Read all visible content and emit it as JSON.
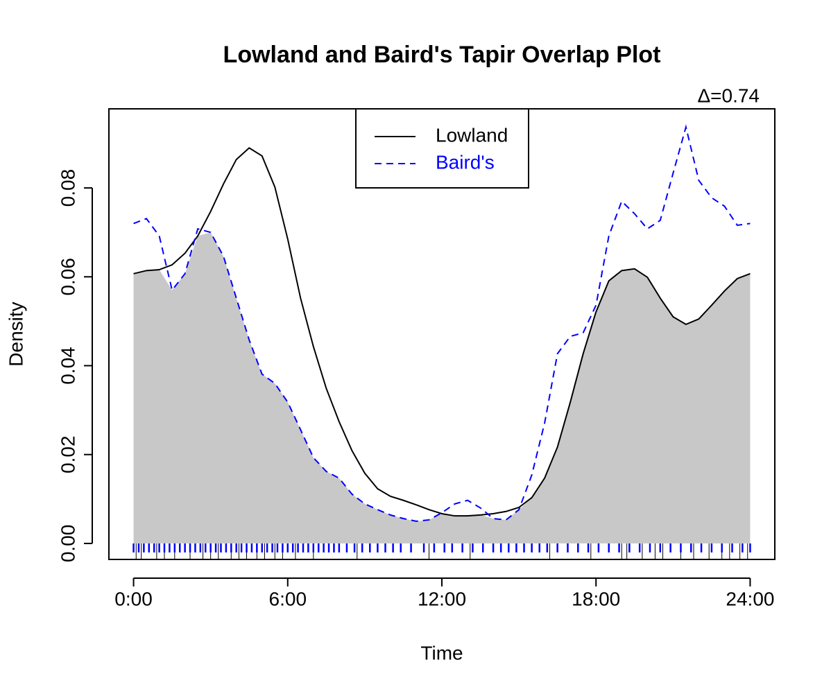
{
  "chart_data": {
    "type": "line",
    "title": "Lowland and Baird's Tapir Overlap Plot",
    "annotation": "Δ=0.74",
    "x_label": "Time",
    "y_label": "Density",
    "xlim": [
      -0.96,
      24.96
    ],
    "ylim": [
      -0.0036,
      0.0978
    ],
    "xticks": [
      {
        "value": 0,
        "label": "0:00"
      },
      {
        "value": 6,
        "label": "6:00"
      },
      {
        "value": 12,
        "label": "12:00"
      },
      {
        "value": 18,
        "label": "18:00"
      },
      {
        "value": 24,
        "label": "24:00"
      }
    ],
    "yticks": [
      {
        "value": 0,
        "label": "0.00"
      },
      0.02,
      0.04,
      0.06,
      0.08
    ],
    "legend": "top",
    "overlap_color": "#c8c8c8",
    "x": [
      0,
      0.5,
      1,
      1.5,
      2,
      2.5,
      3,
      3.5,
      4,
      4.5,
      5,
      5.5,
      6,
      6.5,
      7,
      7.5,
      8,
      8.5,
      9,
      9.5,
      10,
      10.5,
      11,
      11.5,
      12,
      12.5,
      13,
      13.5,
      14,
      14.5,
      15,
      15.5,
      16,
      16.5,
      17,
      17.5,
      18,
      18.5,
      19,
      19.5,
      20,
      20.5,
      21,
      21.5,
      22,
      22.5,
      23,
      23.5,
      24
    ],
    "series": [
      {
        "name": "Lowland",
        "color": "#000000",
        "dashed": false,
        "values": [
          0.0607,
          0.0614,
          0.0616,
          0.0627,
          0.0653,
          0.0692,
          0.0747,
          0.0809,
          0.0864,
          0.089,
          0.0872,
          0.0802,
          0.0685,
          0.0552,
          0.0443,
          0.0349,
          0.0274,
          0.0209,
          0.0158,
          0.0123,
          0.0106,
          0.0097,
          0.0087,
          0.0076,
          0.0067,
          0.0062,
          0.0062,
          0.0064,
          0.0067,
          0.0072,
          0.0081,
          0.0103,
          0.0147,
          0.0217,
          0.0318,
          0.0427,
          0.0521,
          0.0591,
          0.0614,
          0.0618,
          0.0599,
          0.0552,
          0.051,
          0.0493,
          0.0505,
          0.0536,
          0.0568,
          0.0596,
          0.0607
        ],
        "rug": [
          0.1,
          0.3,
          0.9,
          1.2,
          1.6,
          2.2,
          2.7,
          3.0,
          3.3,
          3.8,
          4.1,
          4.4,
          4.8,
          5.1,
          5.5,
          5.8,
          6.3,
          7.0,
          8.7,
          11.5,
          13.1,
          16.2,
          17.8,
          19.0,
          19.2,
          19.8,
          20.3,
          20.6,
          21.3,
          21.8,
          22.4,
          22.9,
          23.2,
          23.6,
          23.9
        ]
      },
      {
        "name": "Baird's",
        "color": "#0000ff",
        "dashed": true,
        "values": [
          0.072,
          0.0731,
          0.0692,
          0.057,
          0.0607,
          0.0708,
          0.07,
          0.0646,
          0.0552,
          0.0458,
          0.0381,
          0.036,
          0.0318,
          0.0256,
          0.0193,
          0.0162,
          0.0147,
          0.0111,
          0.0089,
          0.0076,
          0.0064,
          0.0056,
          0.005,
          0.0053,
          0.0069,
          0.0089,
          0.0097,
          0.008,
          0.0056,
          0.0053,
          0.0076,
          0.0154,
          0.0271,
          0.0427,
          0.0466,
          0.0474,
          0.0536,
          0.0692,
          0.077,
          0.0742,
          0.0708,
          0.0727,
          0.0833,
          0.0937,
          0.0817,
          0.0778,
          0.0759,
          0.0716,
          0.072
        ],
        "rug": [
          0,
          0.2,
          0.4,
          0.6,
          0.8,
          1,
          1.2,
          1.4,
          1.6,
          1.8,
          2,
          2.2,
          2.4,
          2.6,
          2.8,
          3,
          3.2,
          3.4,
          3.6,
          3.8,
          4,
          4.2,
          4.4,
          4.6,
          4.8,
          5,
          5.2,
          5.4,
          5.6,
          5.8,
          6,
          6.2,
          6.4,
          6.6,
          6.8,
          7,
          7.2,
          7.4,
          7.6,
          7.8,
          8,
          8.3,
          8.6,
          8.9,
          9.2,
          9.5,
          9.8,
          10.1,
          10.4,
          10.8,
          11.3,
          11.7,
          12.1,
          12.4,
          12.8,
          13.2,
          13.6,
          14,
          14.3,
          14.6,
          14.9,
          15.2,
          15.5,
          15.8,
          16.1,
          16.5,
          16.9,
          17.3,
          17.7,
          18.1,
          18.5,
          18.9,
          19.3,
          19.7,
          20.1,
          20.5,
          20.9,
          21.3,
          21.7,
          22.1,
          22.5,
          22.9,
          23.3,
          23.7,
          24
        ]
      }
    ]
  }
}
